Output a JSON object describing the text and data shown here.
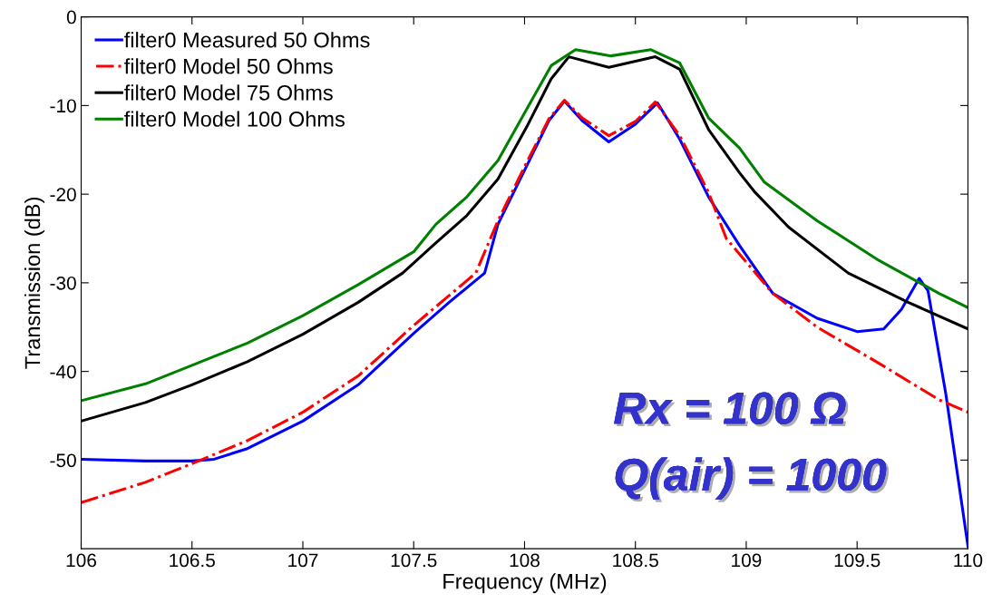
{
  "chart_data": {
    "type": "line",
    "xlabel": "Frequency (MHz)",
    "ylabel": "Transmission (dB)",
    "xlim": [
      106,
      110
    ],
    "xticks": [
      106,
      106.5,
      107,
      107.5,
      108,
      108.5,
      109,
      109.5,
      110
    ],
    "ylim": [
      -60,
      0
    ],
    "yticks": [
      0,
      -10,
      -20,
      -30,
      -40,
      -50
    ],
    "legend": "top left",
    "grid": false,
    "annotations": [
      "Rx = 100 Ω",
      "Q(air) = 1000"
    ],
    "series": [
      {
        "name": "filter0 Measured 50 Ohms",
        "color": "#0000ff",
        "line_style": "solid",
        "x": [
          106,
          106.29,
          106.5,
          106.6,
          106.75,
          107,
          107.25,
          107.5,
          107.66,
          107.82,
          107.88,
          108.01,
          108.11,
          108.18,
          108.26,
          108.38,
          108.5,
          108.6,
          108.7,
          108.83,
          108.97,
          109.12,
          109.32,
          109.5,
          109.62,
          109.7,
          109.78,
          109.82,
          109.9,
          110
        ],
        "values": [
          -49.9,
          -50.1,
          -50.1,
          -49.9,
          -48.7,
          -45.6,
          -41.5,
          -35.7,
          -32.2,
          -28.9,
          -23.4,
          -16.8,
          -11.7,
          -9.5,
          -11.7,
          -14.1,
          -12.1,
          -9.7,
          -13.8,
          -20.3,
          -25.8,
          -31.2,
          -34.0,
          -35.5,
          -35.2,
          -33.0,
          -29.5,
          -30.9,
          -42.5,
          -59.7
        ]
      },
      {
        "name": "filter0 Model 50 Ohms",
        "color": "#ff0000",
        "line_style": "dashdot",
        "x": [
          106,
          106.29,
          106.5,
          106.75,
          107,
          107.25,
          107.5,
          107.78,
          107.88,
          108.01,
          108.11,
          108.18,
          108.26,
          108.38,
          108.5,
          108.59,
          108.7,
          108.83,
          108.91,
          109.12,
          109.32,
          109.6,
          109.87,
          110
        ],
        "values": [
          -54.8,
          -52.5,
          -50.4,
          -47.8,
          -44.6,
          -40.5,
          -34.8,
          -28.9,
          -23.0,
          -16.4,
          -11.5,
          -9.4,
          -11.4,
          -13.4,
          -11.8,
          -9.6,
          -13.4,
          -19.8,
          -25.0,
          -31.2,
          -35.0,
          -39.1,
          -43.2,
          -44.6
        ]
      },
      {
        "name": "filter0 Model 75 Ohms",
        "color": "#000000",
        "line_style": "solid",
        "x": [
          106,
          106.29,
          106.5,
          106.75,
          107,
          107.25,
          107.45,
          107.6,
          107.74,
          107.88,
          108.01,
          108.12,
          108.2,
          108.38,
          108.59,
          108.7,
          108.83,
          108.97,
          109.04,
          109.19,
          109.46,
          109.73,
          110
        ],
        "values": [
          -45.6,
          -43.5,
          -41.5,
          -38.9,
          -35.8,
          -32.2,
          -28.9,
          -25.5,
          -22.4,
          -18.3,
          -12.4,
          -7.0,
          -4.5,
          -5.7,
          -4.5,
          -5.9,
          -12.7,
          -17.6,
          -19.8,
          -23.7,
          -28.9,
          -32.2,
          -35.2
        ]
      },
      {
        "name": "filter0 Model 100 Ohms",
        "color": "#008000",
        "line_style": "solid",
        "x": [
          106,
          106.29,
          106.5,
          106.75,
          107,
          107.25,
          107.5,
          107.6,
          107.74,
          107.88,
          108.01,
          108.12,
          108.23,
          108.39,
          108.57,
          108.7,
          108.83,
          108.97,
          109.08,
          109.32,
          109.6,
          109.87,
          110
        ],
        "values": [
          -43.3,
          -41.4,
          -39.3,
          -36.8,
          -33.7,
          -30.2,
          -26.5,
          -23.4,
          -20.3,
          -16.2,
          -10.4,
          -5.5,
          -3.7,
          -4.4,
          -3.7,
          -5.2,
          -11.4,
          -14.8,
          -18.6,
          -23.0,
          -27.5,
          -31.2,
          -32.8
        ]
      }
    ]
  }
}
